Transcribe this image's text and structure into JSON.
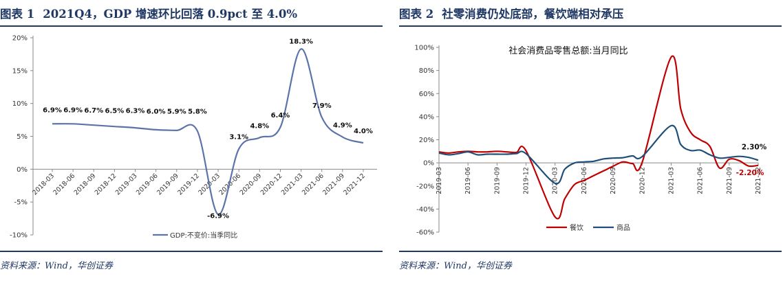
{
  "chart_data": [
    {
      "type": "line",
      "figure_label": "图表 1",
      "title": "2021Q4，GDP 增速环比回落 0.9pct 至 4.0%",
      "source": "资料来源：Wind，华创证券",
      "x_tick_labels": [
        "2018-03",
        "2018-06",
        "2018-09",
        "2018-12",
        "2019-03",
        "2019-06",
        "2019-09",
        "2019-12",
        "2020-03",
        "2020-06",
        "2020-09",
        "2020-12",
        "2021-03",
        "2021-06",
        "2021-09",
        "2021-12"
      ],
      "y_tick_labels": [
        "20%",
        "15%",
        "10%",
        "5%",
        "0%",
        "-5%",
        "-10%"
      ],
      "ylim": [
        -10,
        20
      ],
      "series": [
        {
          "name": "GDP:不变价:当季同比",
          "color": "#5b73a8",
          "x": [
            "2018-03",
            "2018-06",
            "2018-09",
            "2018-12",
            "2019-03",
            "2019-06",
            "2019-09",
            "2019-12",
            "2020-03",
            "2020-06",
            "2020-09",
            "2020-12",
            "2021-03",
            "2021-06",
            "2021-09",
            "2021-12"
          ],
          "values": [
            6.9,
            6.9,
            6.7,
            6.5,
            6.3,
            6.0,
            5.9,
            5.8,
            -6.9,
            3.1,
            4.8,
            6.4,
            18.3,
            7.9,
            4.9,
            4.0
          ]
        }
      ],
      "data_labels": [
        "6.9%",
        "6.9%",
        "6.7%",
        "6.5%",
        "6.3%",
        "6.0%",
        "5.9%",
        "5.8%",
        "-6.9%",
        "3.1%",
        "4.8%",
        "6.4%",
        "18.3%",
        "7.9%",
        "4.9%",
        "4.0%"
      ],
      "legend_position": "bottom-right"
    },
    {
      "type": "line",
      "figure_label": "图表 2",
      "title": "社零消费仍处底部，餐饮端相对承压",
      "chart_subtitle": "社会消费品零售总额:当月同比",
      "source": "资料来源：Wind，华创证券",
      "x_tick_labels": [
        "2019-03",
        "2019-06",
        "2019-09",
        "2019-12",
        "2020-03",
        "2020-06",
        "2020-09",
        "2020-12",
        "2021-03",
        "2021-06",
        "2021-09",
        "2021-12"
      ],
      "y_tick_labels": [
        "100%",
        "80%",
        "60%",
        "40%",
        "20%",
        "0%",
        "-20%",
        "-40%",
        "-60%"
      ],
      "ylim": [
        -60,
        100
      ],
      "series": [
        {
          "name": "餐饮",
          "color": "#c00000",
          "x": [
            "2019-03",
            "2019-04",
            "2019-05",
            "2019-06",
            "2019-07",
            "2019-08",
            "2019-09",
            "2019-10",
            "2019-11",
            "2019-12",
            "2020-03",
            "2020-04",
            "2020-05",
            "2020-06",
            "2020-07",
            "2020-08",
            "2020-09",
            "2020-10",
            "2020-11",
            "2020-12",
            "2021-03",
            "2021-04",
            "2021-05",
            "2021-06",
            "2021-07",
            "2021-08",
            "2021-09",
            "2021-10",
            "2021-11",
            "2021-12"
          ],
          "values": [
            9.5,
            8.5,
            9.5,
            10.0,
            9.5,
            9.5,
            10.0,
            9.5,
            9.0,
            10.5,
            -46.8,
            -31.1,
            -18.9,
            -15.2,
            -11.0,
            -7.0,
            -2.9,
            0.8,
            -0.6,
            0.4,
            91.6,
            46.4,
            26.6,
            20.0,
            14.3,
            -4.5,
            3.1,
            2.0,
            -2.7,
            -2.2
          ]
        },
        {
          "name": "商品",
          "color": "#1f4e79",
          "x": [
            "2019-03",
            "2019-04",
            "2019-05",
            "2019-06",
            "2019-07",
            "2019-08",
            "2019-09",
            "2019-10",
            "2019-11",
            "2019-12",
            "2020-03",
            "2020-04",
            "2020-05",
            "2020-06",
            "2020-07",
            "2020-08",
            "2020-09",
            "2020-10",
            "2020-11",
            "2020-12",
            "2021-03",
            "2021-04",
            "2021-05",
            "2021-06",
            "2021-07",
            "2021-08",
            "2021-09",
            "2021-10",
            "2021-11",
            "2021-12"
          ],
          "values": [
            8.5,
            7.0,
            8.0,
            9.5,
            7.0,
            7.5,
            7.5,
            7.5,
            8.0,
            8.0,
            -17.7,
            -5.5,
            -0.1,
            0.8,
            1.4,
            3.4,
            4.1,
            4.5,
            6.0,
            5.4,
            32.2,
            15.8,
            10.7,
            11.0,
            7.0,
            4.1,
            4.8,
            5.6,
            4.7,
            2.3
          ]
        }
      ],
      "end_labels": [
        "2.30%",
        "-2.20%"
      ],
      "legend_position": "bottom-center"
    }
  ]
}
